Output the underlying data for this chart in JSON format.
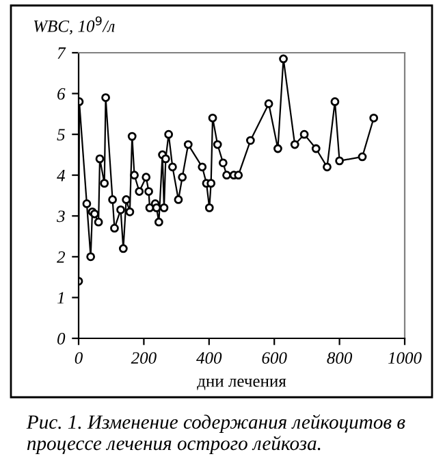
{
  "chart_data": {
    "type": "line",
    "xlabel": "дни лечения",
    "ylabel": "WBC, 10$^{9}$/л",
    "x": [
      0,
      2,
      25,
      37,
      42,
      49,
      61,
      65,
      79,
      83,
      104,
      110,
      129,
      137,
      146,
      157,
      164,
      171,
      186,
      207,
      215,
      218,
      235,
      239,
      246,
      257,
      262,
      267,
      276,
      288,
      306,
      318,
      336,
      379,
      392,
      401,
      406,
      411,
      426,
      443,
      454,
      476,
      490,
      527,
      583,
      611,
      628,
      663,
      692,
      728,
      762,
      786,
      800,
      870,
      905
    ],
    "series": [
      {
        "color": "#000000",
        "values": [
          1.4,
          5.8,
          3.3,
          2.0,
          3.1,
          3.05,
          2.85,
          4.4,
          3.8,
          5.9,
          3.4,
          2.7,
          3.15,
          2.2,
          3.4,
          3.1,
          4.95,
          4.0,
          3.6,
          3.95,
          3.6,
          3.2,
          3.3,
          3.2,
          2.85,
          4.5,
          3.2,
          4.4,
          5.0,
          4.2,
          3.4,
          3.95,
          4.75,
          4.2,
          3.8,
          3.2,
          3.8,
          5.4,
          4.75,
          4.3,
          4.0,
          4.0,
          4.0,
          4.85,
          5.75,
          4.65,
          6.85,
          4.75,
          5.0,
          4.65,
          4.2,
          5.8,
          4.35,
          4.45,
          5.4
        ]
      }
    ],
    "marker": "circle",
    "line_style": "solid",
    "grid": false,
    "legend": false,
    "xlim": [
      0,
      1000
    ],
    "ylim": [
      0,
      7
    ],
    "xticks": [
      0,
      200,
      400,
      600,
      800,
      1000
    ],
    "yticks": [
      0,
      1,
      2,
      3,
      4,
      5,
      6,
      7
    ],
    "annotations": [
      "Рис. 1. Изменение содержания лейкоцитов в процессе лечения острого лейкоза."
    ]
  }
}
